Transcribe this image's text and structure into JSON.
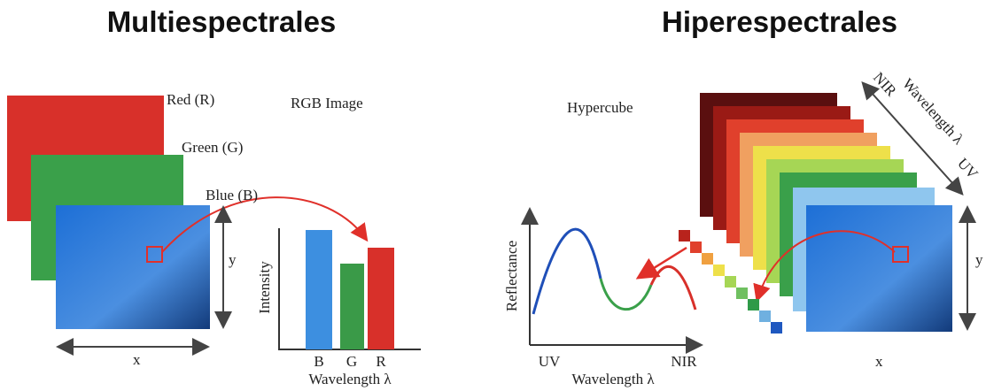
{
  "left": {
    "title": "Multiespectrales",
    "layers": [
      "Red (R)",
      "Green (G)",
      "Blue (B)"
    ],
    "image_label": "RGB Image",
    "y_axis": "y",
    "x_axis": "x",
    "chart": {
      "y_label": "Intensity",
      "categories": [
        "B",
        "G",
        "R"
      ],
      "x_label": "Wavelength λ"
    }
  },
  "right": {
    "title": "Hiperespectrales",
    "cube_label": "Hypercube",
    "spectrum": {
      "y_label": "Reflectance",
      "x_start": "UV",
      "x_end": "NIR",
      "x_label": "Wavelength λ"
    },
    "wavelength_axis": {
      "start": "NIR",
      "label": "Wavelength λ",
      "end": "UV"
    },
    "y_axis": "y",
    "x_axis": "x"
  }
}
